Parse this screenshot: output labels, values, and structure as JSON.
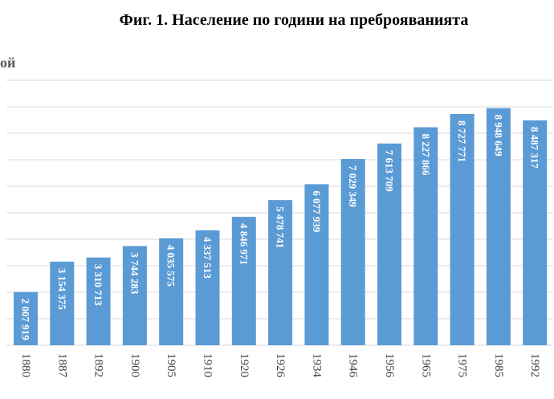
{
  "chart_data": {
    "type": "bar",
    "title": "Фиг. 1. Население по години на преброяванията",
    "ylabel_visible": "ой",
    "categories": [
      "1880",
      "1887",
      "1892",
      "1900",
      "1905",
      "1910",
      "1920",
      "1926",
      "1934",
      "1946",
      "1956",
      "1965",
      "1975",
      "1985",
      "1992"
    ],
    "values": [
      2007919,
      3154375,
      3310713,
      3744283,
      4035575,
      4337513,
      4846971,
      5478741,
      6077939,
      7029349,
      7613709,
      8227866,
      8727771,
      8948649,
      8487317
    ],
    "labels": [
      "2 007 919",
      "3 154 375",
      "3 310 713",
      "3 744 283",
      "4 035 575",
      "4 337 513",
      "4 846 971",
      "5 478 741",
      "6 077 939",
      "7 029 349",
      "7 613 709",
      "8 227 866",
      "8 727 771",
      "8 948 649",
      "8 487 317"
    ],
    "ylim": [
      0,
      10000000
    ],
    "grid": true,
    "bar_color": "#5B9BD5",
    "grid_color": "#D9D9D9"
  }
}
